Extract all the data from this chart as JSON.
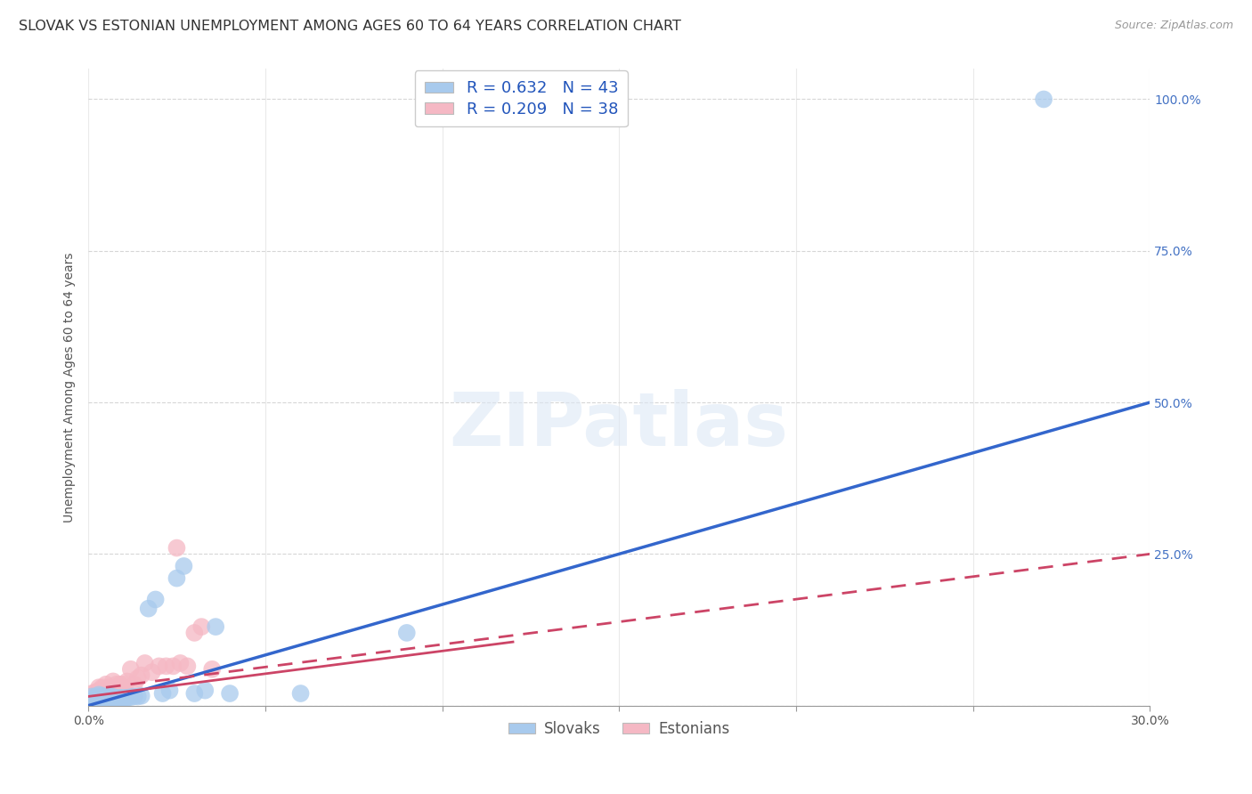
{
  "title": "SLOVAK VS ESTONIAN UNEMPLOYMENT AMONG AGES 60 TO 64 YEARS CORRELATION CHART",
  "source": "Source: ZipAtlas.com",
  "ylabel": "Unemployment Among Ages 60 to 64 years",
  "xlim": [
    0.0,
    0.3
  ],
  "ylim": [
    0.0,
    1.05
  ],
  "xticks": [
    0.0,
    0.05,
    0.1,
    0.15,
    0.2,
    0.25,
    0.3
  ],
  "yticks": [
    0.0,
    0.25,
    0.5,
    0.75,
    1.0
  ],
  "yticklabels": [
    "",
    "25.0%",
    "50.0%",
    "75.0%",
    "100.0%"
  ],
  "blue_R": 0.632,
  "blue_N": 43,
  "pink_R": 0.209,
  "pink_N": 38,
  "blue_color": "#a8caed",
  "pink_color": "#f5b8c4",
  "blue_line_color": "#3366cc",
  "pink_line_color": "#cc4466",
  "background_color": "#ffffff",
  "title_fontsize": 11.5,
  "axis_label_fontsize": 10,
  "tick_fontsize": 10,
  "blue_scatter_x": [
    0.001,
    0.001,
    0.002,
    0.002,
    0.002,
    0.003,
    0.003,
    0.003,
    0.003,
    0.004,
    0.004,
    0.004,
    0.005,
    0.005,
    0.006,
    0.006,
    0.006,
    0.007,
    0.007,
    0.008,
    0.008,
    0.009,
    0.009,
    0.01,
    0.01,
    0.011,
    0.012,
    0.013,
    0.014,
    0.015,
    0.017,
    0.019,
    0.021,
    0.023,
    0.025,
    0.027,
    0.03,
    0.033,
    0.036,
    0.04,
    0.06,
    0.09,
    0.27
  ],
  "blue_scatter_y": [
    0.01,
    0.015,
    0.01,
    0.012,
    0.015,
    0.01,
    0.012,
    0.015,
    0.018,
    0.01,
    0.013,
    0.016,
    0.01,
    0.014,
    0.01,
    0.013,
    0.016,
    0.01,
    0.014,
    0.01,
    0.013,
    0.01,
    0.013,
    0.01,
    0.013,
    0.013,
    0.014,
    0.015,
    0.015,
    0.016,
    0.16,
    0.175,
    0.02,
    0.025,
    0.21,
    0.23,
    0.02,
    0.025,
    0.13,
    0.02,
    0.02,
    0.12,
    1.0
  ],
  "pink_scatter_x": [
    0.001,
    0.001,
    0.002,
    0.002,
    0.003,
    0.003,
    0.003,
    0.004,
    0.004,
    0.005,
    0.005,
    0.005,
    0.006,
    0.006,
    0.007,
    0.007,
    0.008,
    0.008,
    0.009,
    0.009,
    0.01,
    0.01,
    0.011,
    0.012,
    0.013,
    0.014,
    0.015,
    0.016,
    0.018,
    0.02,
    0.022,
    0.024,
    0.025,
    0.026,
    0.028,
    0.03,
    0.032,
    0.035
  ],
  "pink_scatter_y": [
    0.015,
    0.02,
    0.018,
    0.022,
    0.02,
    0.025,
    0.03,
    0.025,
    0.03,
    0.02,
    0.025,
    0.035,
    0.025,
    0.03,
    0.025,
    0.04,
    0.03,
    0.035,
    0.025,
    0.035,
    0.03,
    0.035,
    0.04,
    0.06,
    0.035,
    0.045,
    0.05,
    0.07,
    0.055,
    0.065,
    0.065,
    0.065,
    0.26,
    0.07,
    0.065,
    0.12,
    0.13,
    0.06
  ],
  "blue_line_x": [
    0.0,
    0.3
  ],
  "blue_line_y": [
    0.0,
    0.5
  ],
  "pink_line_x": [
    0.005,
    0.3
  ],
  "pink_line_y": [
    0.03,
    0.25
  ]
}
